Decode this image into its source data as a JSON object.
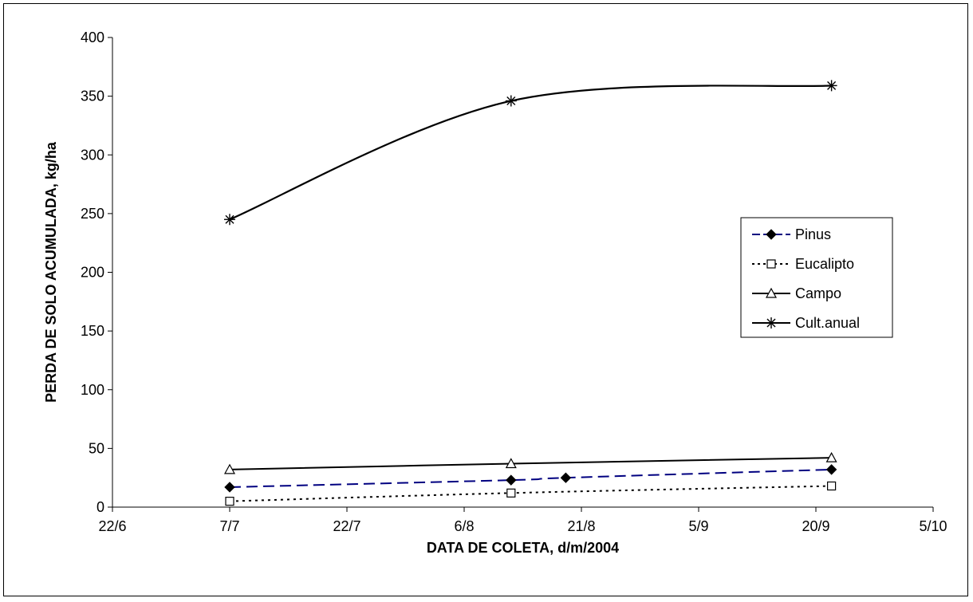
{
  "chart_data": {
    "type": "line",
    "xlabel": "DATA DE COLETA, d/m/2004",
    "ylabel": "PERDA DE SOLO ACUMULADA, kg/ha",
    "xlim": [
      "2004-06-22",
      "2004-10-05"
    ],
    "ylim": [
      0,
      400
    ],
    "x_ticks": [
      "2004-06-22",
      "2004-07-07",
      "2004-07-22",
      "2004-08-06",
      "2004-08-21",
      "2004-09-05",
      "2004-09-20",
      "2004-10-05"
    ],
    "x_tick_labels": [
      "22/6",
      "7/7",
      "22/7",
      "6/8",
      "21/8",
      "5/9",
      "20/9",
      "5/10"
    ],
    "y_ticks": [
      0,
      50,
      100,
      150,
      200,
      250,
      300,
      350,
      400
    ],
    "y_tick_labels": [
      "0",
      "50",
      "100",
      "150",
      "200",
      "250",
      "300",
      "350",
      "400"
    ],
    "grid": false,
    "legend_position": "right",
    "series": [
      {
        "name": "Pinus",
        "color": "#000080",
        "marker": "diamond-filled",
        "line_style": "long-dash",
        "x": [
          "2004-07-07",
          "2004-08-12",
          "2004-08-19",
          "2004-09-22"
        ],
        "values": [
          17,
          23,
          25,
          32
        ]
      },
      {
        "name": "Eucalipto",
        "color": "#000000",
        "marker": "square-open",
        "line_style": "dotted",
        "x": [
          "2004-07-07",
          "2004-08-12",
          "2004-09-22"
        ],
        "values": [
          5,
          12,
          18
        ]
      },
      {
        "name": "Campo",
        "color": "#000000",
        "marker": "triangle-open",
        "line_style": "solid",
        "x": [
          "2004-07-07",
          "2004-08-12",
          "2004-09-22"
        ],
        "values": [
          32,
          37,
          42
        ]
      },
      {
        "name": "Cult.anual",
        "color": "#000000",
        "marker": "asterisk",
        "line_style": "solid",
        "x": [
          "2004-07-07",
          "2004-08-12",
          "2004-09-22"
        ],
        "values": [
          245,
          346,
          359
        ]
      }
    ]
  }
}
